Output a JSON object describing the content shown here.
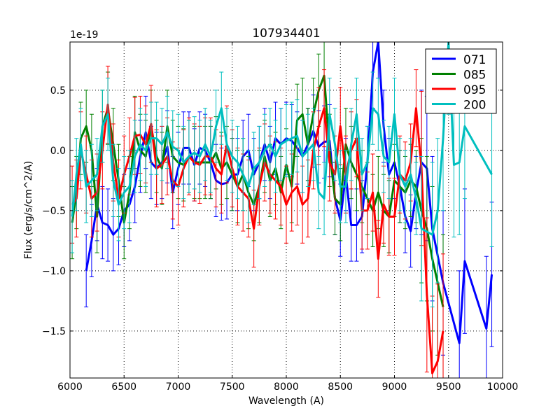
{
  "chart_data": {
    "type": "line",
    "title": "107934401",
    "xlabel": "Wavelength (A)",
    "ylabel": "Flux (erg/s/cm^2/A)",
    "y_offset_label": "1e-19",
    "xlim": [
      6000,
      10000
    ],
    "ylim": [
      -1.89,
      0.9
    ],
    "xticks": [
      6000,
      6500,
      7000,
      7500,
      8000,
      8500,
      9000,
      9500,
      10000
    ],
    "xtick_labels": [
      "6000",
      "6500",
      "7000",
      "7500",
      "8000",
      "8500",
      "9000",
      "9500",
      "10000"
    ],
    "yticks": [
      0.5,
      0.0,
      -0.5,
      -1.0,
      -1.5
    ],
    "ytick_labels": [
      "0.5",
      "0.0",
      "−0.5",
      "−1.0",
      "−1.5"
    ],
    "grid": true,
    "legend_position": "top-right",
    "series": [
      {
        "name": "071",
        "color": "#0000ff",
        "yerr": 0.3,
        "x": [
          6150,
          6200,
          6250,
          6300,
          6350,
          6400,
          6450,
          6500,
          6550,
          6600,
          6650,
          6700,
          6750,
          6800,
          6850,
          6900,
          6950,
          7000,
          7050,
          7100,
          7150,
          7200,
          7250,
          7300,
          7350,
          7400,
          7450,
          7500,
          7550,
          7600,
          7650,
          7700,
          7750,
          7800,
          7850,
          7900,
          7950,
          8000,
          8050,
          8100,
          8150,
          8200,
          8250,
          8300,
          8350,
          8400,
          8450,
          8500,
          8550,
          8600,
          8650,
          8700,
          8750,
          8800,
          8850,
          8900,
          8950,
          9000,
          9050,
          9100,
          9150,
          9200,
          9250,
          9300,
          9350,
          9450,
          9600,
          9650,
          9850,
          9900
        ],
        "y": [
          -1.0,
          -0.75,
          -0.45,
          -0.6,
          -0.62,
          -0.7,
          -0.65,
          -0.5,
          -0.45,
          -0.3,
          -0.05,
          0.15,
          -0.1,
          -0.15,
          -0.1,
          0.03,
          -0.35,
          -0.15,
          0.02,
          0.02,
          -0.12,
          0.02,
          0.0,
          -0.1,
          -0.25,
          -0.28,
          -0.27,
          -0.2,
          -0.2,
          -0.05,
          0.0,
          -0.2,
          -0.1,
          0.05,
          -0.1,
          0.1,
          0.05,
          0.1,
          0.08,
          0.02,
          -0.05,
          0.05,
          0.16,
          0.03,
          0.07,
          0.08,
          -0.4,
          -0.58,
          -0.2,
          -0.62,
          -0.62,
          -0.55,
          -0.1,
          0.65,
          0.9,
          0.2,
          -0.2,
          -0.1,
          -0.3,
          -0.55,
          -0.67,
          -0.35,
          -0.1,
          -0.15,
          -0.65,
          -1.1,
          -1.6,
          -0.92,
          -1.48,
          -1.03
        ]
      },
      {
        "name": "085",
        "color": "#008000",
        "yerr": 0.3,
        "x": [
          6020,
          6060,
          6100,
          6150,
          6200,
          6250,
          6300,
          6350,
          6400,
          6450,
          6500,
          6550,
          6600,
          6650,
          6700,
          6750,
          6800,
          6850,
          6900,
          6950,
          7000,
          7050,
          7100,
          7150,
          7200,
          7250,
          7300,
          7350,
          7400,
          7450,
          7500,
          7550,
          7600,
          7650,
          7700,
          7750,
          7800,
          7850,
          7900,
          7950,
          8000,
          8050,
          8100,
          8150,
          8200,
          8250,
          8300,
          8350,
          8400,
          8450,
          8500,
          8550,
          8600,
          8650,
          8700,
          8750,
          8800,
          8850,
          8900,
          8950,
          9000,
          9050,
          9100,
          9150,
          9200,
          9250,
          9300,
          9350,
          9400,
          9450
        ],
        "y": [
          -0.6,
          -0.35,
          0.1,
          0.2,
          0.0,
          -0.55,
          0.2,
          0.35,
          0.05,
          -0.25,
          -0.6,
          -0.35,
          0.15,
          0.0,
          -0.05,
          0.2,
          -0.05,
          -0.15,
          0.2,
          -0.05,
          -0.1,
          -0.12,
          -0.05,
          -0.1,
          -0.1,
          -0.1,
          -0.1,
          -0.02,
          -0.15,
          -0.1,
          -0.2,
          -0.3,
          -0.2,
          -0.35,
          -0.45,
          -0.3,
          -0.05,
          -0.25,
          -0.15,
          -0.35,
          -0.12,
          -0.3,
          0.25,
          0.3,
          0.05,
          0.3,
          0.5,
          0.62,
          0.0,
          -0.4,
          -0.45,
          0.05,
          -0.1,
          -0.2,
          -0.3,
          -0.4,
          -0.5,
          -0.35,
          -0.5,
          -0.55,
          -0.25,
          -0.3,
          -0.35,
          -0.25,
          -0.3,
          -0.5,
          -0.65,
          -0.9,
          -1.1,
          -1.3
        ]
      },
      {
        "name": "095",
        "color": "#ff0000",
        "yerr": 0.32,
        "x": [
          6020,
          6060,
          6100,
          6150,
          6200,
          6250,
          6300,
          6350,
          6400,
          6450,
          6500,
          6550,
          6600,
          6650,
          6700,
          6750,
          6800,
          6850,
          6900,
          6950,
          7000,
          7050,
          7100,
          7150,
          7200,
          7250,
          7300,
          7350,
          7400,
          7450,
          7500,
          7550,
          7600,
          7650,
          7700,
          7750,
          7800,
          7850,
          7900,
          7950,
          8000,
          8050,
          8100,
          8150,
          8200,
          8250,
          8300,
          8350,
          8400,
          8450,
          8500,
          8550,
          8600,
          8650,
          8700,
          8750,
          8800,
          8850,
          8900,
          8950,
          9000,
          9050,
          9100,
          9150,
          9200,
          9250,
          9300,
          9350,
          9400,
          9450
        ],
        "y": [
          -0.45,
          -0.4,
          0.0,
          -0.2,
          -0.4,
          -0.35,
          0.0,
          0.38,
          -0.1,
          -0.4,
          -0.2,
          -0.05,
          0.12,
          0.13,
          0.05,
          0.22,
          -0.15,
          -0.12,
          -0.05,
          -0.25,
          -0.3,
          -0.15,
          -0.05,
          -0.1,
          -0.12,
          -0.05,
          -0.05,
          -0.15,
          -0.2,
          0.05,
          -0.15,
          -0.3,
          -0.35,
          -0.4,
          -0.65,
          -0.3,
          -0.1,
          -0.2,
          -0.25,
          -0.3,
          -0.45,
          -0.35,
          -0.3,
          -0.45,
          -0.4,
          0.0,
          0.2,
          0.35,
          -0.1,
          -0.2,
          0.2,
          -0.2,
          0.0,
          0.1,
          -0.5,
          -0.5,
          -0.35,
          -0.9,
          -0.45,
          -0.55,
          -0.55,
          -0.2,
          -0.25,
          -0.1,
          0.35,
          -0.15,
          -1.2,
          -1.85,
          -1.75,
          -1.5
        ]
      },
      {
        "name": "200",
        "color": "#00bfbf",
        "yerr": 0.3,
        "x": [
          6020,
          6060,
          6100,
          6150,
          6200,
          6250,
          6300,
          6350,
          6400,
          6450,
          6500,
          6550,
          6600,
          6650,
          6700,
          6750,
          6800,
          6850,
          6900,
          6950,
          7000,
          7050,
          7100,
          7150,
          7200,
          7250,
          7300,
          7350,
          7400,
          7450,
          7500,
          7550,
          7600,
          7650,
          7700,
          7750,
          7800,
          7850,
          7900,
          7950,
          8000,
          8050,
          8100,
          8150,
          8200,
          8250,
          8300,
          8350,
          8400,
          8450,
          8500,
          8550,
          8600,
          8650,
          8700,
          8750,
          8800,
          8850,
          8900,
          8950,
          9000,
          9050,
          9100,
          9150,
          9200,
          9250,
          9350,
          9400,
          9450,
          9500,
          9550,
          9600,
          9650,
          9900
        ],
        "y": [
          -0.55,
          -0.2,
          0.05,
          -0.3,
          -0.25,
          -0.2,
          0.2,
          0.3,
          -0.25,
          -0.45,
          -0.35,
          -0.3,
          -0.05,
          0.05,
          0.0,
          0.1,
          0.1,
          0.05,
          0.15,
          0.03,
          0.0,
          -0.1,
          -0.05,
          -0.02,
          -0.05,
          0.05,
          -0.05,
          0.2,
          0.35,
          0.05,
          -0.05,
          -0.1,
          -0.2,
          -0.3,
          -0.15,
          -0.1,
          0.0,
          0.05,
          -0.05,
          0.05,
          0.08,
          0.1,
          0.12,
          -0.05,
          0.0,
          0.05,
          -0.35,
          -0.4,
          0.3,
          0.05,
          -0.3,
          -0.3,
          0.05,
          0.3,
          -0.2,
          -0.1,
          0.35,
          0.3,
          -0.05,
          -0.1,
          0.3,
          -0.2,
          -0.3,
          -0.2,
          -0.4,
          -0.65,
          -0.7,
          -0.5,
          0.1,
          0.9,
          -0.12,
          -0.1,
          0.2,
          -0.2
        ]
      }
    ]
  }
}
